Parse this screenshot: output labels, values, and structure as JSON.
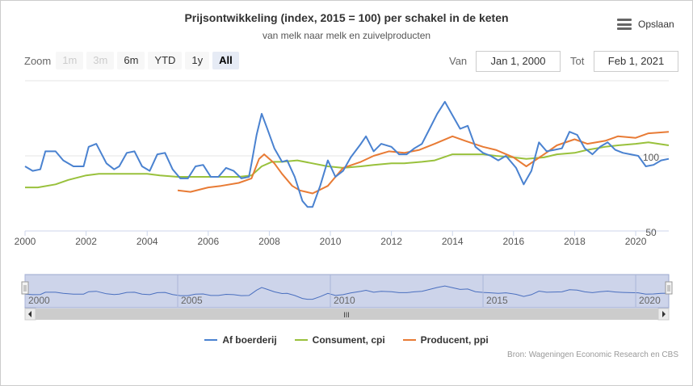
{
  "title": "Prijsontwikkeling (index, 2015 = 100) per schakel in de keten",
  "subtitle": "van melk naar melk en zuivelproducten",
  "export_label": "Opslaan",
  "zoom": {
    "label": "Zoom",
    "buttons": [
      {
        "label": "1m",
        "state": "disabled"
      },
      {
        "label": "3m",
        "state": "disabled"
      },
      {
        "label": "6m",
        "state": "normal"
      },
      {
        "label": "YTD",
        "state": "normal"
      },
      {
        "label": "1y",
        "state": "normal"
      },
      {
        "label": "All",
        "state": "active"
      }
    ]
  },
  "range": {
    "from_label": "Van",
    "from_value": "Jan 1, 2000",
    "to_label": "Tot",
    "to_value": "Feb 1, 2021"
  },
  "credits": "Bron: Wageningen Economic Research en CBS",
  "navigator": {
    "tick_labels": [
      "2000",
      "2005",
      "2010",
      "2015",
      "2020"
    ],
    "scroll_grip": "III"
  },
  "chart_data": {
    "type": "line",
    "x_axis": {
      "type": "datetime",
      "min": "2000-01",
      "max": "2021-02",
      "tick_labels": [
        "2000",
        "2002",
        "2004",
        "2006",
        "2008",
        "2010",
        "2012",
        "2014",
        "2016",
        "2018",
        "2020"
      ]
    },
    "y_axis": {
      "min": 50,
      "max": 150,
      "tick_labels": [
        "100",
        "50"
      ],
      "ticks": [
        100,
        50
      ]
    },
    "grid": true,
    "legend": "bottom-center",
    "series": [
      {
        "name": "Af boerderij",
        "color": "#4a82d0",
        "points": [
          [
            "2000-01",
            93
          ],
          [
            "2000-04",
            90
          ],
          [
            "2000-07",
            91
          ],
          [
            "2000-09",
            103
          ],
          [
            "2001-01",
            103
          ],
          [
            "2001-04",
            97
          ],
          [
            "2001-08",
            93
          ],
          [
            "2001-12",
            93
          ],
          [
            "2002-02",
            106
          ],
          [
            "2002-05",
            108
          ],
          [
            "2002-09",
            95
          ],
          [
            "2002-12",
            91
          ],
          [
            "2003-02",
            93
          ],
          [
            "2003-05",
            102
          ],
          [
            "2003-08",
            103
          ],
          [
            "2003-11",
            93
          ],
          [
            "2004-02",
            90
          ],
          [
            "2004-05",
            101
          ],
          [
            "2004-08",
            102
          ],
          [
            "2004-11",
            91
          ],
          [
            "2005-02",
            85
          ],
          [
            "2005-05",
            85
          ],
          [
            "2005-08",
            93
          ],
          [
            "2005-11",
            94
          ],
          [
            "2006-02",
            86
          ],
          [
            "2006-05",
            86
          ],
          [
            "2006-08",
            92
          ],
          [
            "2006-11",
            90
          ],
          [
            "2007-02",
            85
          ],
          [
            "2007-05",
            86
          ],
          [
            "2007-06",
            95
          ],
          [
            "2007-08",
            114
          ],
          [
            "2007-10",
            128
          ],
          [
            "2007-12",
            119
          ],
          [
            "2008-03",
            105
          ],
          [
            "2008-06",
            96
          ],
          [
            "2008-08",
            97
          ],
          [
            "2008-11",
            86
          ],
          [
            "2009-02",
            70
          ],
          [
            "2009-04",
            66
          ],
          [
            "2009-06",
            66
          ],
          [
            "2009-09",
            80
          ],
          [
            "2009-12",
            97
          ],
          [
            "2010-03",
            86
          ],
          [
            "2010-06",
            90
          ],
          [
            "2010-09",
            99
          ],
          [
            "2011-01",
            108
          ],
          [
            "2011-03",
            113
          ],
          [
            "2011-06",
            103
          ],
          [
            "2011-09",
            108
          ],
          [
            "2012-01",
            106
          ],
          [
            "2012-04",
            101
          ],
          [
            "2012-07",
            101
          ],
          [
            "2012-10",
            105
          ],
          [
            "2013-01",
            108
          ],
          [
            "2013-04",
            118
          ],
          [
            "2013-07",
            128
          ],
          [
            "2013-10",
            136
          ],
          [
            "2014-01",
            127
          ],
          [
            "2014-04",
            118
          ],
          [
            "2014-07",
            120
          ],
          [
            "2014-10",
            106
          ],
          [
            "2015-01",
            102
          ],
          [
            "2015-04",
            100
          ],
          [
            "2015-07",
            97
          ],
          [
            "2015-10",
            100
          ],
          [
            "2016-02",
            92
          ],
          [
            "2016-05",
            81
          ],
          [
            "2016-08",
            90
          ],
          [
            "2016-11",
            109
          ],
          [
            "2017-02",
            103
          ],
          [
            "2017-05",
            104
          ],
          [
            "2017-08",
            105
          ],
          [
            "2017-11",
            116
          ],
          [
            "2018-02",
            114
          ],
          [
            "2018-05",
            105
          ],
          [
            "2018-08",
            101
          ],
          [
            "2018-11",
            106
          ],
          [
            "2019-02",
            109
          ],
          [
            "2019-05",
            104
          ],
          [
            "2019-08",
            102
          ],
          [
            "2019-11",
            101
          ],
          [
            "2020-02",
            100
          ],
          [
            "2020-05",
            93
          ],
          [
            "2020-08",
            94
          ],
          [
            "2020-11",
            97
          ],
          [
            "2021-02",
            98
          ]
        ]
      },
      {
        "name": "Consument, cpi",
        "color": "#99c13c",
        "points": [
          [
            "2000-01",
            79
          ],
          [
            "2000-06",
            79
          ],
          [
            "2001-01",
            81
          ],
          [
            "2001-06",
            84
          ],
          [
            "2002-01",
            87
          ],
          [
            "2002-06",
            88
          ],
          [
            "2003-01",
            88
          ],
          [
            "2003-06",
            88
          ],
          [
            "2004-01",
            88
          ],
          [
            "2004-06",
            87
          ],
          [
            "2005-01",
            86
          ],
          [
            "2005-06",
            86
          ],
          [
            "2006-01",
            86
          ],
          [
            "2006-06",
            86
          ],
          [
            "2007-01",
            86
          ],
          [
            "2007-06",
            87
          ],
          [
            "2007-10",
            93
          ],
          [
            "2008-02",
            96
          ],
          [
            "2008-06",
            96
          ],
          [
            "2008-12",
            97
          ],
          [
            "2009-06",
            95
          ],
          [
            "2009-12",
            93
          ],
          [
            "2010-06",
            92
          ],
          [
            "2011-01",
            93
          ],
          [
            "2011-06",
            94
          ],
          [
            "2012-01",
            95
          ],
          [
            "2012-06",
            95
          ],
          [
            "2013-01",
            96
          ],
          [
            "2013-06",
            97
          ],
          [
            "2014-01",
            101
          ],
          [
            "2014-06",
            101
          ],
          [
            "2015-01",
            101
          ],
          [
            "2015-06",
            100
          ],
          [
            "2016-01",
            99
          ],
          [
            "2016-06",
            98
          ],
          [
            "2017-01",
            99
          ],
          [
            "2017-06",
            101
          ],
          [
            "2018-01",
            102
          ],
          [
            "2018-06",
            104
          ],
          [
            "2019-01",
            106
          ],
          [
            "2019-06",
            107
          ],
          [
            "2020-01",
            108
          ],
          [
            "2020-06",
            109
          ],
          [
            "2021-02",
            107
          ]
        ]
      },
      {
        "name": "Producent, ppi",
        "color": "#e87b35",
        "points": [
          [
            "2005-01",
            77
          ],
          [
            "2005-06",
            76
          ],
          [
            "2006-01",
            79
          ],
          [
            "2006-06",
            80
          ],
          [
            "2007-01",
            82
          ],
          [
            "2007-06",
            85
          ],
          [
            "2007-09",
            98
          ],
          [
            "2007-11",
            101
          ],
          [
            "2008-03",
            95
          ],
          [
            "2008-06",
            88
          ],
          [
            "2008-10",
            80
          ],
          [
            "2009-01",
            77
          ],
          [
            "2009-06",
            75
          ],
          [
            "2009-12",
            80
          ],
          [
            "2010-06",
            92
          ],
          [
            "2011-01",
            96
          ],
          [
            "2011-06",
            100
          ],
          [
            "2011-12",
            103
          ],
          [
            "2012-06",
            102
          ],
          [
            "2012-12",
            104
          ],
          [
            "2013-06",
            108
          ],
          [
            "2014-01",
            113
          ],
          [
            "2014-06",
            110
          ],
          [
            "2015-01",
            106
          ],
          [
            "2015-06",
            104
          ],
          [
            "2016-01",
            99
          ],
          [
            "2016-06",
            93
          ],
          [
            "2017-01",
            101
          ],
          [
            "2017-06",
            107
          ],
          [
            "2018-01",
            111
          ],
          [
            "2018-06",
            108
          ],
          [
            "2019-01",
            110
          ],
          [
            "2019-06",
            113
          ],
          [
            "2020-01",
            112
          ],
          [
            "2020-06",
            115
          ],
          [
            "2021-02",
            116
          ]
        ]
      }
    ]
  }
}
